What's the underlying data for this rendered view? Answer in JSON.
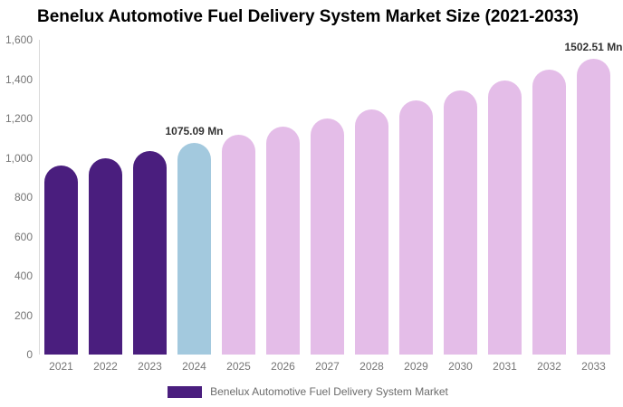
{
  "title": "Benelux Automotive Fuel Delivery System Market Size (2021-2033)",
  "chart_data": {
    "type": "bar",
    "title": "Benelux Automotive Fuel Delivery System Market Size (2021-2033)",
    "unit": "Mn",
    "categories": [
      "2021",
      "2022",
      "2023",
      "2024",
      "2025",
      "2026",
      "2027",
      "2028",
      "2029",
      "2030",
      "2031",
      "2032",
      "2033"
    ],
    "values": [
      960,
      998,
      1036,
      1075.09,
      1116,
      1158,
      1202,
      1247,
      1294,
      1343,
      1394,
      1447,
      1502.51
    ],
    "bar_segments": [
      "historical",
      "historical",
      "historical",
      "current",
      "forecast",
      "forecast",
      "forecast",
      "forecast",
      "forecast",
      "forecast",
      "forecast",
      "forecast",
      "forecast"
    ],
    "segment_colors": {
      "historical": "#4A1E7E",
      "current": "#A3C9DE",
      "forecast": "#E4BDE8"
    },
    "data_labels": [
      {
        "index": 3,
        "text": "1075.09 Mn"
      },
      {
        "index": 12,
        "text": "1502.51 Mn"
      }
    ],
    "xlabel": "",
    "ylabel": "",
    "ylim": [
      0,
      1600
    ],
    "ytick_interval": 200,
    "ytick_labels": [
      "0",
      "200",
      "400",
      "600",
      "800",
      "1,000",
      "1,200",
      "1,400",
      "1,600"
    ],
    "grid": false,
    "legend_position": "bottom",
    "legend": [
      {
        "label": "Benelux Automotive Fuel Delivery System Market",
        "color": "#4A1E7E"
      }
    ],
    "axis_line_color": "#d9d9d9",
    "tick_text_color": "#757575",
    "data_label_color": "#333333",
    "background_color": "#ffffff"
  }
}
